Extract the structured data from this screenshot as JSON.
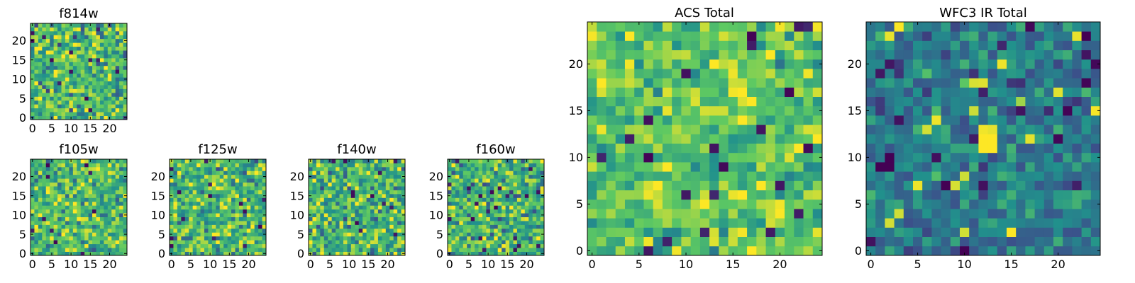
{
  "figure": {
    "grid_size": 25,
    "colormap": "viridis",
    "colormap_stops": [
      "#440154",
      "#3b528b",
      "#21918c",
      "#5ec962",
      "#fde725"
    ]
  },
  "chart_data": [
    {
      "type": "heatmap",
      "id": "f814w",
      "title": "f814w",
      "xticks": [
        0,
        5,
        10,
        15,
        20
      ],
      "yticks": [
        0,
        5,
        10,
        15,
        20
      ],
      "xlim": [
        -0.5,
        24.5
      ],
      "ylim": [
        -0.5,
        24.5
      ],
      "value_range": [
        0.0,
        1.0
      ],
      "mean": 0.66,
      "spread": 0.22,
      "hotspots": [],
      "seed": 11
    },
    {
      "type": "heatmap",
      "id": "f105w",
      "title": "f105w",
      "xticks": [
        0,
        5,
        10,
        15,
        20
      ],
      "yticks": [
        0,
        5,
        10,
        15,
        20
      ],
      "xlim": [
        -0.5,
        24.5
      ],
      "ylim": [
        -0.5,
        24.5
      ],
      "value_range": [
        0.0,
        1.0
      ],
      "mean": 0.68,
      "spread": 0.2,
      "hotspots": [],
      "seed": 23
    },
    {
      "type": "heatmap",
      "id": "f125w",
      "title": "f125w",
      "xticks": [
        0,
        5,
        10,
        15,
        20
      ],
      "yticks": [
        0,
        5,
        10,
        15,
        20
      ],
      "xlim": [
        -0.5,
        24.5
      ],
      "ylim": [
        -0.5,
        24.5
      ],
      "value_range": [
        0.0,
        1.0
      ],
      "mean": 0.67,
      "spread": 0.21,
      "hotspots": [],
      "seed": 37
    },
    {
      "type": "heatmap",
      "id": "f140w",
      "title": "f140w",
      "xticks": [
        0,
        5,
        10,
        15,
        20
      ],
      "yticks": [
        0,
        5,
        10,
        15,
        20
      ],
      "xlim": [
        -0.5,
        24.5
      ],
      "ylim": [
        -0.5,
        24.5
      ],
      "value_range": [
        0.0,
        1.0
      ],
      "mean": 0.64,
      "spread": 0.22,
      "hotspots": [],
      "seed": 41
    },
    {
      "type": "heatmap",
      "id": "f160w",
      "title": "f160w",
      "xticks": [
        0,
        5,
        10,
        15,
        20
      ],
      "yticks": [
        0,
        5,
        10,
        15,
        20
      ],
      "xlim": [
        -0.5,
        24.5
      ],
      "ylim": [
        -0.5,
        24.5
      ],
      "value_range": [
        0.0,
        1.0
      ],
      "mean": 0.66,
      "spread": 0.22,
      "hotspots": [],
      "seed": 53
    },
    {
      "type": "heatmap",
      "id": "acs-total",
      "title": "ACS Total",
      "xticks": [
        0,
        5,
        10,
        15,
        20
      ],
      "yticks": [
        0,
        5,
        10,
        15,
        20
      ],
      "xlim": [
        -0.5,
        24.5
      ],
      "ylim": [
        -0.5,
        24.5
      ],
      "value_range": [
        0.0,
        1.0
      ],
      "mean": 0.72,
      "spread": 0.16,
      "hotspots": [],
      "seed": 67
    },
    {
      "type": "heatmap",
      "id": "wfc3-ir-total",
      "title": "WFC3 IR Total",
      "xticks": [
        0,
        5,
        10,
        15,
        20
      ],
      "yticks": [
        0,
        5,
        10,
        15,
        20
      ],
      "xlim": [
        -0.5,
        24.5
      ],
      "ylim": [
        -0.5,
        24.5
      ],
      "value_range": [
        0.0,
        1.0
      ],
      "mean": 0.42,
      "spread": 0.14,
      "hotspots": [
        {
          "x": 12,
          "y": 11,
          "value": 1.0
        },
        {
          "x": 13,
          "y": 11,
          "value": 1.0
        },
        {
          "x": 12,
          "y": 12,
          "value": 1.0
        },
        {
          "x": 13,
          "y": 12,
          "value": 1.0
        },
        {
          "x": 12,
          "y": 13,
          "value": 0.98
        },
        {
          "x": 13,
          "y": 13,
          "value": 0.96
        },
        {
          "x": 11,
          "y": 15,
          "value": 0.92
        },
        {
          "x": 16,
          "y": 16,
          "value": 0.85
        },
        {
          "x": 1,
          "y": 9,
          "value": 0.0
        },
        {
          "x": 2,
          "y": 9,
          "value": 0.0
        },
        {
          "x": 2,
          "y": 10,
          "value": 0.0
        },
        {
          "x": 23,
          "y": 23,
          "value": 0.0
        },
        {
          "x": 10,
          "y": 0,
          "value": 0.0
        },
        {
          "x": 8,
          "y": 7,
          "value": 0.0
        },
        {
          "x": 20,
          "y": 12,
          "value": 0.02
        }
      ],
      "seed": 79
    }
  ]
}
